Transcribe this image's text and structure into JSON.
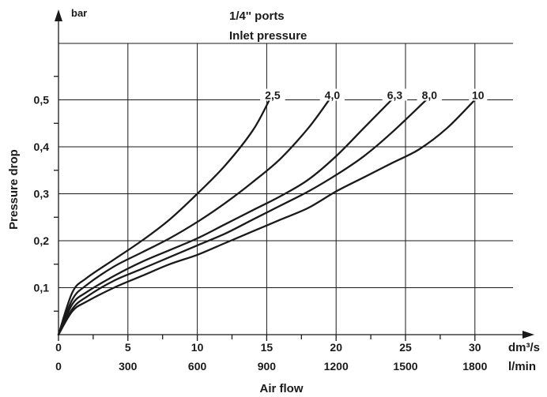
{
  "chart_data": {
    "type": "line",
    "title": "1/4'' ports",
    "subtitle": "Inlet pressure",
    "ylabel": "Pressure drop",
    "y_unit": "bar",
    "xlabel": "Air flow",
    "x_unit_primary": "dm³/s",
    "x_unit_secondary": "l/min",
    "xlim": [
      0,
      34
    ],
    "ylim": [
      0,
      0.6
    ],
    "x_ticks": [
      0,
      5,
      10,
      15,
      20,
      25,
      30
    ],
    "x_tick_labels": [
      "0",
      "5",
      "10",
      "15",
      "20",
      "25",
      "30"
    ],
    "x_tick_labels_secondary": [
      "0",
      "300",
      "600",
      "900",
      "1200",
      "1500",
      "1800"
    ],
    "y_ticks": [
      0.1,
      0.2,
      0.3,
      0.4,
      0.5
    ],
    "y_tick_labels": [
      "0,1",
      "0,2",
      "0,3",
      "0,4",
      "0,5"
    ],
    "grid": true,
    "series": [
      {
        "name": "2,5",
        "x": [
          0,
          1,
          2,
          4,
          6,
          8,
          10,
          12,
          14,
          15.2
        ],
        "y": [
          0,
          0.09,
          0.12,
          0.16,
          0.2,
          0.245,
          0.3,
          0.36,
          0.435,
          0.5
        ]
      },
      {
        "name": "4,0",
        "x": [
          0,
          1,
          2,
          4,
          6,
          8,
          10,
          12,
          14,
          16,
          18,
          19.5
        ],
        "y": [
          0,
          0.075,
          0.105,
          0.145,
          0.175,
          0.205,
          0.24,
          0.28,
          0.325,
          0.375,
          0.44,
          0.5
        ]
      },
      {
        "name": "6,3",
        "x": [
          0,
          1,
          2,
          4,
          6,
          8,
          10,
          12,
          14,
          16,
          18,
          20,
          22,
          24
        ],
        "y": [
          0,
          0.065,
          0.09,
          0.125,
          0.155,
          0.18,
          0.205,
          0.235,
          0.265,
          0.295,
          0.33,
          0.38,
          0.44,
          0.5
        ]
      },
      {
        "name": "8,0",
        "x": [
          0,
          1,
          2,
          4,
          6,
          8,
          10,
          12,
          14,
          16,
          18,
          20,
          22,
          24,
          26.5
        ],
        "y": [
          0,
          0.055,
          0.08,
          0.115,
          0.14,
          0.165,
          0.19,
          0.215,
          0.245,
          0.275,
          0.305,
          0.34,
          0.38,
          0.43,
          0.5
        ]
      },
      {
        "name": "10",
        "x": [
          0,
          1,
          2,
          4,
          6,
          8,
          10,
          12,
          14,
          16,
          18,
          20,
          22,
          24,
          26,
          28,
          30
        ],
        "y": [
          0,
          0.05,
          0.07,
          0.1,
          0.125,
          0.15,
          0.17,
          0.195,
          0.22,
          0.245,
          0.27,
          0.305,
          0.335,
          0.365,
          0.395,
          0.44,
          0.5
        ]
      }
    ]
  }
}
